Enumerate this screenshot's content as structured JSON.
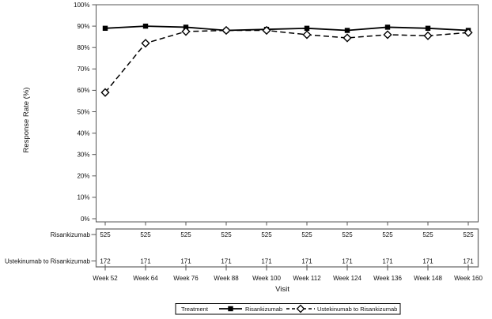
{
  "chart_data": {
    "type": "line",
    "title": "",
    "xlabel": "Visit",
    "ylabel": "Response Rate (%)",
    "x_tick_labels": [
      "Week 52",
      "Week 64",
      "Week 76",
      "Week 88",
      "Week 100",
      "Week 112",
      "Week 124",
      "Week 136",
      "Week 148",
      "Week 160"
    ],
    "y_tick_labels": [
      "0%",
      "10%",
      "20%",
      "30%",
      "40%",
      "50%",
      "60%",
      "70%",
      "80%",
      "90%",
      "100%"
    ],
    "ylim": [
      0,
      100
    ],
    "y_tick_step": 10,
    "grid": false,
    "legend_position": "bottom",
    "legend_title": "Treatment",
    "series": [
      {
        "name": "Risankizumab",
        "line_style": "solid",
        "marker": "filled-square",
        "color": "#000000",
        "values": [
          89,
          90,
          89.5,
          88,
          88.5,
          89,
          88,
          89.5,
          89,
          88
        ]
      },
      {
        "name": "Ustekinumab to Risankizumab",
        "line_style": "dashed",
        "marker": "open-diamond",
        "color": "#000000",
        "values": [
          59,
          82,
          87.5,
          88,
          88,
          86,
          84.5,
          86,
          85.5,
          87
        ]
      }
    ],
    "at_risk_table": {
      "rows": [
        {
          "label": "Risankizumab",
          "counts": [
            525,
            525,
            525,
            525,
            525,
            525,
            525,
            525,
            525,
            525
          ]
        },
        {
          "label": "Ustekinumab to Risankizumab",
          "counts": [
            172,
            171,
            171,
            171,
            171,
            171,
            171,
            171,
            171,
            171
          ]
        }
      ]
    }
  },
  "colors": {
    "series_line": "#000000",
    "marker_fill": "#000000",
    "open_marker_fill": "#ffffff",
    "axis_frame": "#545454",
    "table_border": "#6e6e6e",
    "legend_border": "#000000",
    "text": "#111111",
    "background": "#ffffff"
  }
}
